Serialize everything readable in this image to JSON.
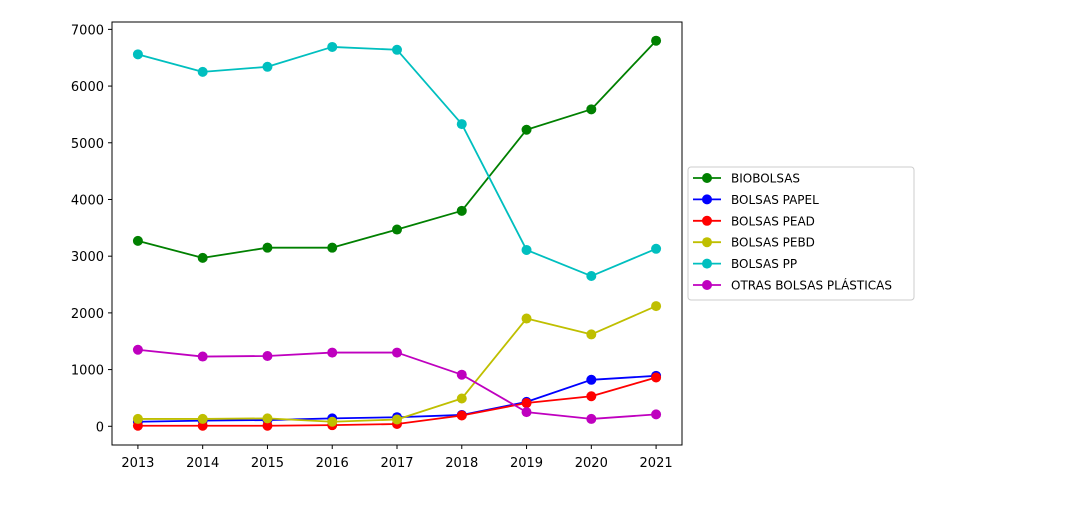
{
  "chart_data": {
    "type": "line",
    "title": "",
    "xlabel": "",
    "ylabel": "",
    "x": [
      2013,
      2014,
      2015,
      2016,
      2017,
      2018,
      2019,
      2020,
      2021
    ],
    "xlim": [
      2012.6,
      2021.4
    ],
    "ylim": [
      -330,
      7130
    ],
    "yticks": [
      0,
      1000,
      2000,
      3000,
      4000,
      5000,
      6000,
      7000
    ],
    "grid": false,
    "legend_position": "right-outside",
    "series": [
      {
        "name": "BIOBOLSAS",
        "color": "#008000",
        "values": [
          3270,
          2970,
          3150,
          3150,
          3470,
          3800,
          5230,
          5590,
          6800
        ]
      },
      {
        "name": "BOLSAS PAPEL",
        "color": "#0000ff",
        "values": [
          80,
          100,
          110,
          140,
          160,
          200,
          430,
          820,
          890
        ]
      },
      {
        "name": "BOLSAS PEAD",
        "color": "#ff0000",
        "values": [
          10,
          10,
          10,
          20,
          40,
          190,
          410,
          530,
          860
        ]
      },
      {
        "name": "BOLSAS PEBD",
        "color": "#bfbf00",
        "values": [
          130,
          130,
          140,
          80,
          120,
          490,
          1900,
          1620,
          2120
        ]
      },
      {
        "name": "BOLSAS PP",
        "color": "#00bfbf",
        "values": [
          6560,
          6250,
          6340,
          6690,
          6640,
          5330,
          3110,
          2650,
          3130
        ]
      },
      {
        "name": "OTRAS BOLSAS PLÁSTICAS",
        "color": "#bf00bf",
        "values": [
          1350,
          1230,
          1240,
          1300,
          1300,
          910,
          250,
          130,
          210
        ]
      }
    ]
  }
}
